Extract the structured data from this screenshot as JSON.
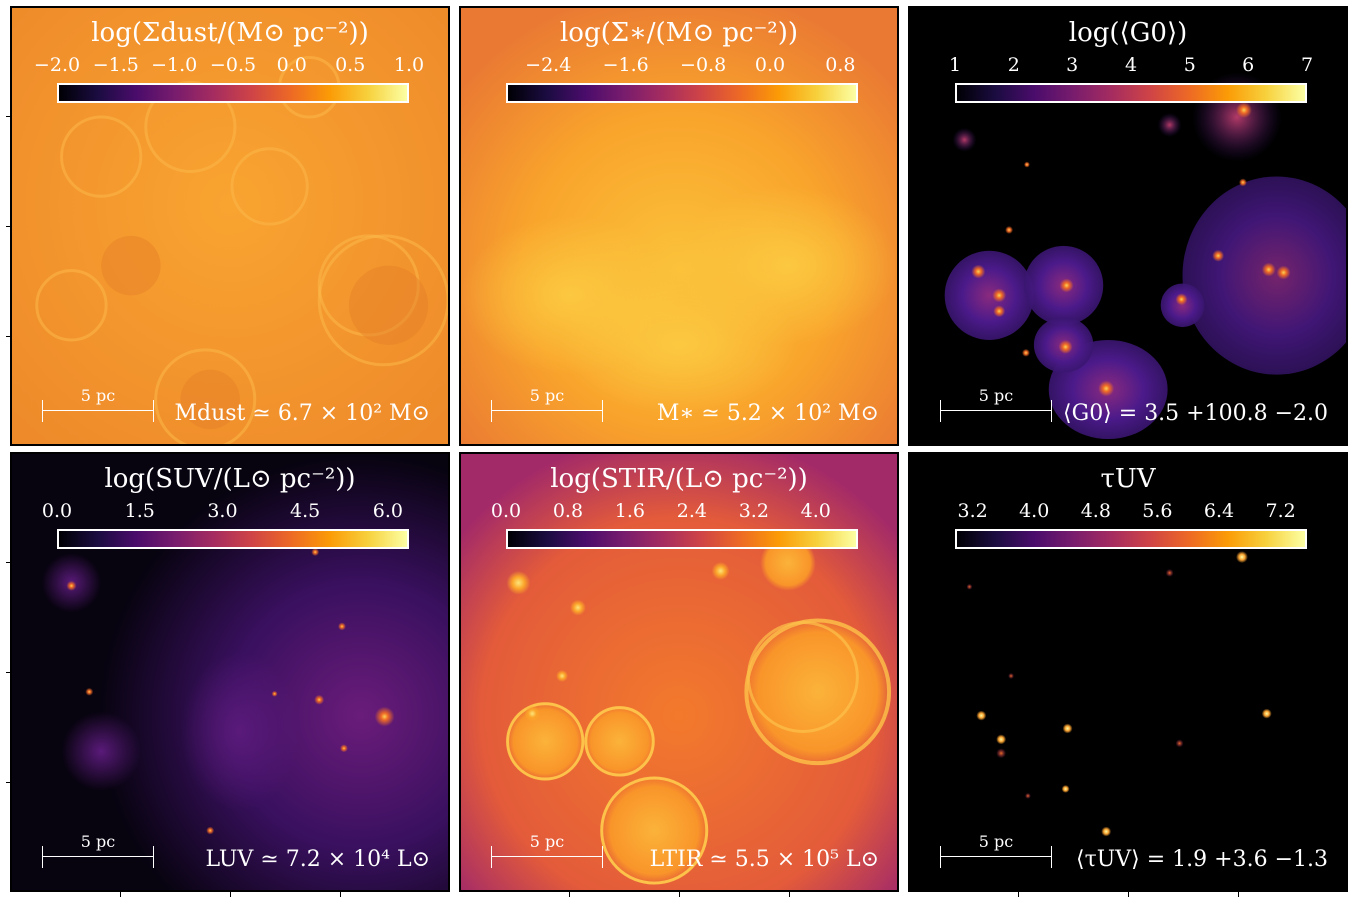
{
  "colormap": [
    "#000004",
    "#1b0c41",
    "#4a0c6b",
    "#781c6d",
    "#a52c60",
    "#cf4446",
    "#ed6925",
    "#fb9b06",
    "#f7d13d",
    "#fcffa4"
  ],
  "panels": [
    {
      "id": "dust",
      "title": "log(Σdust/(M⊙ pc⁻²))",
      "ticks": [
        "−2.0",
        "−1.5",
        "−1.0",
        "−0.5",
        "0.0",
        "0.5",
        "1.0"
      ],
      "scalebar": "5 pc",
      "annotation": "Mdust ≃ 6.7 × 10² M⊙",
      "background": "#f4982a"
    },
    {
      "id": "stars",
      "title": "log(Σ∗/(M⊙ pc⁻²))",
      "ticks": [
        "−2.4",
        "−1.6",
        "−0.8",
        "0.0",
        "0.8"
      ],
      "scalebar": "5 pc",
      "annotation": "M∗ ≃ 5.2 × 10² M⊙",
      "background": "#f28f2c"
    },
    {
      "id": "g0",
      "title": "log(⟨G0⟩)",
      "ticks": [
        "1",
        "2",
        "3",
        "4",
        "5",
        "6",
        "7"
      ],
      "scalebar": "5 pc",
      "annotation": "⟨G0⟩ = 3.5 +100.8 −2.0",
      "background": "#000000"
    },
    {
      "id": "suv",
      "title": "log(SUV/(L⊙ pc⁻²))",
      "ticks": [
        "0.0",
        "1.5",
        "3.0",
        "4.5",
        "6.0"
      ],
      "scalebar": "5 pc",
      "annotation": "LUV ≃ 7.2 × 10⁴ L⊙",
      "background": "#07030f"
    },
    {
      "id": "stir",
      "title": "log(STIR/(L⊙ pc⁻²))",
      "ticks": [
        "0.0",
        "0.8",
        "1.6",
        "2.4",
        "3.2",
        "4.0"
      ],
      "scalebar": "5 pc",
      "annotation": "LTIR ≃ 5.5 × 10⁵ L⊙",
      "background": "#e35b3a"
    },
    {
      "id": "tau",
      "title": "τUV",
      "ticks": [
        "3.2",
        "4.0",
        "4.8",
        "5.6",
        "6.4",
        "7.2"
      ],
      "scalebar": "5 pc",
      "annotation": "⟨τUV⟩ = 1.9 +3.6 −1.3",
      "background": "#000000"
    }
  ]
}
